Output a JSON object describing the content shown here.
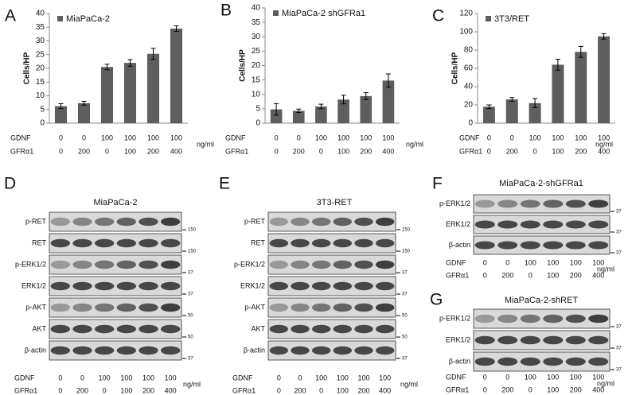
{
  "chart_data": [
    {
      "type": "bar",
      "panel": "A",
      "ylabel": "Cells/HP",
      "series": [
        {
          "name": "MiaPaCa-2",
          "color": "#5e5e5e",
          "values": [
            6.2,
            7.3,
            20.5,
            22,
            25.3,
            34.5
          ],
          "errors": [
            0.9,
            0.7,
            1,
            1.2,
            2,
            1
          ]
        }
      ],
      "ylim": [
        0,
        40
      ],
      "yticks": [
        0,
        5,
        10,
        15,
        20,
        25,
        30,
        35,
        40
      ],
      "conditions": [
        {
          "name": "GDNF",
          "values": [
            0,
            0,
            100,
            100,
            100,
            100
          ]
        },
        {
          "name": "GFRα1",
          "values": [
            0,
            200,
            0,
            100,
            200,
            400
          ]
        }
      ],
      "unit": "ng/ml"
    },
    {
      "type": "bar",
      "panel": "B",
      "ylabel": "Cells/HP",
      "series": [
        {
          "name": "MiaPaCa-2 shGFRa1",
          "color": "#5e5e5e",
          "values": [
            4.8,
            4.3,
            5.8,
            8.2,
            9.4,
            14.8
          ],
          "errors": [
            2,
            0.6,
            0.8,
            1.5,
            1.2,
            2.3
          ]
        }
      ],
      "ylim": [
        0,
        40
      ],
      "yticks": [
        0,
        5,
        10,
        15,
        20,
        25,
        30,
        35,
        40
      ],
      "conditions": [
        {
          "name": "GDNF",
          "values": [
            0,
            0,
            100,
            100,
            100,
            100
          ]
        },
        {
          "name": "GFRα1",
          "values": [
            0,
            200,
            0,
            100,
            200,
            400
          ]
        }
      ],
      "unit": "ng/ml"
    },
    {
      "type": "bar",
      "panel": "C",
      "ylabel": "Cells/HP",
      "series": [
        {
          "name": "3T3/RET",
          "color": "#5e5e5e",
          "values": [
            18,
            26,
            22,
            64,
            78,
            95
          ],
          "errors": [
            2,
            2,
            5,
            6,
            6,
            3
          ]
        }
      ],
      "ylim": [
        0,
        120
      ],
      "yticks": [
        0,
        20,
        40,
        60,
        80,
        100,
        120
      ],
      "conditions": [
        {
          "name": "GDNF",
          "values": [
            0,
            0,
            100,
            100,
            100,
            100
          ]
        },
        {
          "name": "GFRα1",
          "values": [
            0,
            200,
            0,
            100,
            200,
            400
          ]
        }
      ],
      "unit": "ng/ml"
    }
  ],
  "blots": [
    {
      "panel": "D",
      "title": "MiaPaCa-2",
      "rows": [
        {
          "label": "p-RET",
          "marker": 150
        },
        {
          "label": "RET",
          "marker": 150
        },
        {
          "label": "p-ERK1/2",
          "marker": 37
        },
        {
          "label": "ERK1/2",
          "marker": 37
        },
        {
          "label": "p-AKT",
          "marker": 50
        },
        {
          "label": "AKT",
          "marker": 50
        },
        {
          "label": "β-actin",
          "marker": 37
        }
      ],
      "conditions": [
        {
          "name": "GDNF",
          "values": [
            0,
            0,
            100,
            100,
            100,
            100
          ]
        },
        {
          "name": "GFRα1",
          "values": [
            0,
            200,
            0,
            100,
            200,
            400
          ]
        }
      ],
      "unit": "ng/ml"
    },
    {
      "panel": "E",
      "title": "3T3-RET",
      "rows": [
        {
          "label": "p-RET",
          "marker": 150
        },
        {
          "label": "RET",
          "marker": 150
        },
        {
          "label": "p-ERK1/2",
          "marker": 37
        },
        {
          "label": "ERK1/2",
          "marker": 37
        },
        {
          "label": "p-AKT",
          "marker": 50
        },
        {
          "label": "AKT",
          "marker": 50
        },
        {
          "label": "β-actin",
          "marker": 37
        }
      ],
      "conditions": [
        {
          "name": "GDNF",
          "values": [
            0,
            0,
            100,
            100,
            100,
            100
          ]
        },
        {
          "name": "GFRα1",
          "values": [
            0,
            200,
            0,
            100,
            200,
            400
          ]
        }
      ],
      "unit": "ng/ml"
    },
    {
      "panel": "F",
      "title": "MiaPaCa-2-shGFRa1",
      "rows": [
        {
          "label": "p-ERK1/2",
          "marker": 37
        },
        {
          "label": "ERK1/2",
          "marker": 37
        },
        {
          "label": "β-actin",
          "marker": 37
        }
      ],
      "conditions": [
        {
          "name": "GDNF",
          "values": [
            0,
            0,
            100,
            100,
            100,
            100
          ]
        },
        {
          "name": "GFRα1",
          "values": [
            0,
            200,
            0,
            100,
            200,
            400
          ]
        }
      ],
      "unit": "ng/ml"
    },
    {
      "panel": "G",
      "title": "MiaPaCa-2-shRET",
      "rows": [
        {
          "label": "p-ERK1/2",
          "marker": 37
        },
        {
          "label": "ERK1/2",
          "marker": 37
        },
        {
          "label": "β-actin",
          "marker": 37
        }
      ],
      "conditions": [
        {
          "name": "GDNF",
          "values": [
            0,
            0,
            100,
            100,
            100,
            100
          ]
        },
        {
          "name": "GFRα1",
          "values": [
            0,
            200,
            0,
            100,
            200,
            400
          ]
        }
      ],
      "unit": "ng/ml"
    }
  ]
}
